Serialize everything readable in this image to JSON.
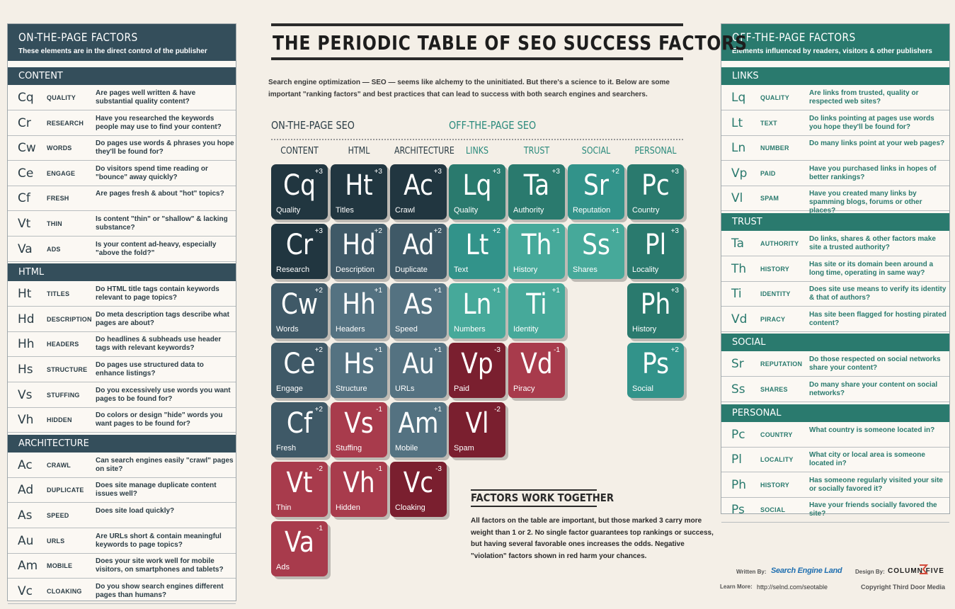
{
  "title": "THE PERIODIC TABLE OF SEO SUCCESS FACTORS",
  "intro": "Search engine optimization — SEO — seems like alchemy to the uninitiated. But there's a science to it. Below are some important \"ranking factors\" and best practices that can lead to success with both search engines and searchers.",
  "on_seo_label": "ON-THE-PAGE SEO",
  "off_seo_label": "OFF-THE-PAGE SEO",
  "colors": {
    "dark": "#213640",
    "slate": "#3f5967",
    "grayblue": "#547281",
    "teal": "#2a7a6e",
    "teal_mid": "#32938a",
    "teal_light": "#46a99a",
    "red_dark": "#7a1f2f",
    "red": "#a83b4c"
  },
  "columns": [
    "CONTENT",
    "HTML",
    "ARCHITECTURE",
    "LINKS",
    "TRUST",
    "SOCIAL",
    "PERSONAL"
  ],
  "tiles": [
    {
      "sym": "Cq",
      "name": "Quality",
      "w": "+3"
    },
    {
      "sym": "Cr",
      "name": "Research",
      "w": "+3"
    },
    {
      "sym": "Cw",
      "name": "Words",
      "w": "+2"
    },
    {
      "sym": "Ce",
      "name": "Engage",
      "w": "+2"
    },
    {
      "sym": "Cf",
      "name": "Fresh",
      "w": "+2"
    },
    {
      "sym": "Vt",
      "name": "Thin",
      "w": "-2"
    },
    {
      "sym": "Va",
      "name": "Ads",
      "w": "-1"
    },
    {
      "sym": "Ht",
      "name": "Titles",
      "w": "+3"
    },
    {
      "sym": "Hd",
      "name": "Description",
      "w": "+2"
    },
    {
      "sym": "Hh",
      "name": "Headers",
      "w": "+1"
    },
    {
      "sym": "Hs",
      "name": "Structure",
      "w": "+1"
    },
    {
      "sym": "Vs",
      "name": "Stuffing",
      "w": "-1"
    },
    {
      "sym": "Vh",
      "name": "Hidden",
      "w": "-1"
    },
    {
      "sym": "Ac",
      "name": "Crawl",
      "w": "+3"
    },
    {
      "sym": "Ad",
      "name": "Duplicate",
      "w": "+2"
    },
    {
      "sym": "As",
      "name": "Speed",
      "w": "+1"
    },
    {
      "sym": "Au",
      "name": "URLs",
      "w": "+1"
    },
    {
      "sym": "Am",
      "name": "Mobile",
      "w": "+1"
    },
    {
      "sym": "Vc",
      "name": "Cloaking",
      "w": "-3"
    },
    {
      "sym": "Lq",
      "name": "Quality",
      "w": "+3"
    },
    {
      "sym": "Lt",
      "name": "Text",
      "w": "+2"
    },
    {
      "sym": "Ln",
      "name": "Numbers",
      "w": "+1"
    },
    {
      "sym": "Vp",
      "name": "Paid",
      "w": "-3"
    },
    {
      "sym": "Vl",
      "name": "Spam",
      "w": "-2"
    },
    {
      "sym": "Ta",
      "name": "Authority",
      "w": "+3"
    },
    {
      "sym": "Th",
      "name": "History",
      "w": "+1"
    },
    {
      "sym": "Ti",
      "name": "Identity",
      "w": "+1"
    },
    {
      "sym": "Vd",
      "name": "Piracy",
      "w": "-1"
    },
    {
      "sym": "Sr",
      "name": "Reputation",
      "w": "+2"
    },
    {
      "sym": "Ss",
      "name": "Shares",
      "w": "+1"
    },
    {
      "sym": "Pc",
      "name": "Country",
      "w": "+3"
    },
    {
      "sym": "Pl",
      "name": "Locality",
      "w": "+3"
    },
    {
      "sym": "Ph",
      "name": "History",
      "w": "+3"
    },
    {
      "sym": "Ps",
      "name": "Social",
      "w": "+2"
    }
  ],
  "left_panel": {
    "title": "ON-THE-PAGE FACTORS",
    "subtitle": "These elements are in the direct control of the publisher",
    "sections": [
      {
        "name": "CONTENT",
        "rows": [
          {
            "sym": "Cq",
            "name": "QUALITY",
            "desc": "Are pages well written & have substantial quality content?"
          },
          {
            "sym": "Cr",
            "name": "RESEARCH",
            "desc": "Have you researched the keywords people may use to find your content?"
          },
          {
            "sym": "Cw",
            "name": "WORDS",
            "desc": "Do pages use words & phrases you hope they'll be found for?"
          },
          {
            "sym": "Ce",
            "name": "ENGAGE",
            "desc": "Do visitors spend time reading or \"bounce\" away quickly?"
          },
          {
            "sym": "Cf",
            "name": "FRESH",
            "desc": "Are pages fresh & about \"hot\" topics?"
          },
          {
            "sym": "Vt",
            "name": "THIN",
            "desc": "Is content \"thin\" or \"shallow\" & lacking substance?"
          },
          {
            "sym": "Va",
            "name": "ADS",
            "desc": "Is your content ad-heavy, especially \"above the fold?\""
          }
        ]
      },
      {
        "name": "HTML",
        "rows": [
          {
            "sym": "Ht",
            "name": "TITLES",
            "desc": "Do HTML title tags contain keywords relevant to page topics?"
          },
          {
            "sym": "Hd",
            "name": "DESCRIPTION",
            "desc": "Do meta description tags describe what pages are about?"
          },
          {
            "sym": "Hh",
            "name": "HEADERS",
            "desc": "Do headlines & subheads use header tags with relevant keywords?"
          },
          {
            "sym": "Hs",
            "name": "STRUCTURE",
            "desc": "Do pages use structured data to enhance listings?"
          },
          {
            "sym": "Vs",
            "name": "STUFFING",
            "desc": "Do you excessively use words you want pages to be found for?"
          },
          {
            "sym": "Vh",
            "name": "HIDDEN",
            "desc": "Do colors or design \"hide\" words you want pages to be found for?"
          }
        ]
      },
      {
        "name": "ARCHITECTURE",
        "rows": [
          {
            "sym": "Ac",
            "name": "CRAWL",
            "desc": "Can search engines easily \"crawl\" pages on site?"
          },
          {
            "sym": "Ad",
            "name": "DUPLICATE",
            "desc": "Does site manage duplicate content issues well?"
          },
          {
            "sym": "As",
            "name": "SPEED",
            "desc": "Does site load quickly?"
          },
          {
            "sym": "Au",
            "name": "URLS",
            "desc": "Are URLs short & contain meaningful keywords to page topics?"
          },
          {
            "sym": "Am",
            "name": "MOBILE",
            "desc": "Does your site work well for mobile visitors, on smartphones and tablets?"
          },
          {
            "sym": "Vc",
            "name": "CLOAKING",
            "desc": "Do you show search engines different pages than humans?"
          }
        ]
      }
    ]
  },
  "right_panel": {
    "title": "OFF-THE-PAGE FACTORS",
    "subtitle": "Elements influenced by readers, visitors & other publishers",
    "sections": [
      {
        "name": "LINKS",
        "rows": [
          {
            "sym": "Lq",
            "name": "QUALITY",
            "desc": "Are links from trusted, quality or respected web sites?"
          },
          {
            "sym": "Lt",
            "name": "TEXT",
            "desc": "Do links pointing at pages use words you hope they'll be found for?"
          },
          {
            "sym": "Ln",
            "name": "NUMBER",
            "desc": "Do many links point at your web pages?"
          },
          {
            "sym": "Vp",
            "name": "PAID",
            "desc": "Have you purchased links in hopes of better rankings?"
          },
          {
            "sym": "Vl",
            "name": "SPAM",
            "desc": "Have you created many links by spamming blogs, forums or other places?"
          }
        ]
      },
      {
        "name": "TRUST",
        "rows": [
          {
            "sym": "Ta",
            "name": "AUTHORITY",
            "desc": "Do links, shares & other factors make site a trusted authority?"
          },
          {
            "sym": "Th",
            "name": "HISTORY",
            "desc": "Has site or its domain been around a long time, operating in same way?"
          },
          {
            "sym": "Ti",
            "name": "IDENTITY",
            "desc": "Does site use means to verify its identity & that of authors?"
          },
          {
            "sym": "Vd",
            "name": "PIRACY",
            "desc": "Has site been flagged for hosting pirated content?"
          }
        ]
      },
      {
        "name": "SOCIAL",
        "rows": [
          {
            "sym": "Sr",
            "name": "REPUTATION",
            "desc": "Do those respected on social networks share your content?"
          },
          {
            "sym": "Ss",
            "name": "SHARES",
            "desc": "Do many share your content on social networks?"
          }
        ]
      },
      {
        "name": "PERSONAL",
        "rows": [
          {
            "sym": "Pc",
            "name": "COUNTRY",
            "desc": "What country is someone located in?"
          },
          {
            "sym": "Pl",
            "name": "LOCALITY",
            "desc": "What city or local area is someone located in?"
          },
          {
            "sym": "Ph",
            "name": "HISTORY",
            "desc": "Has someone regularly visited your site or socially favored it?"
          },
          {
            "sym": "Ps",
            "name": "SOCIAL",
            "desc": "Have your friends socially favored the site?"
          }
        ]
      }
    ]
  },
  "factors": {
    "title": "FACTORS WORK TOGETHER",
    "text": "All factors on the table are important, but those marked 3 carry more weight than 1 or 2. No single factor guarantees top rankings or success, but having several favorable ones increases the odds. Negative \"violation\" factors shown in red harm your chances."
  },
  "credits": {
    "written_by": "Written By:",
    "written_logo": "Search Engine Land",
    "design_by": "Design By:",
    "design_logo": "COLUMN FIVE",
    "learn_more": "Learn More:",
    "url": "http://selnd.com/seotable",
    "copyright": "Copyright Third Door Media"
  }
}
